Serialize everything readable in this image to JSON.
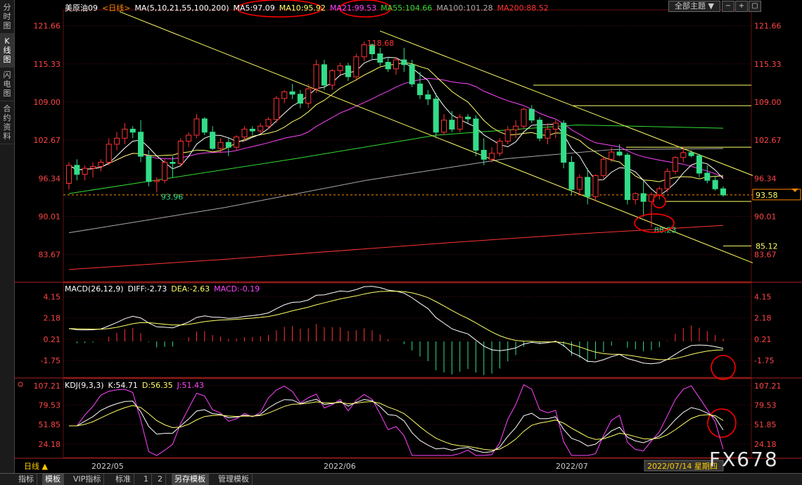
{
  "left_tabs": [
    "分时图",
    "K线图",
    "闪电图",
    "合约资料"
  ],
  "active_left_tab": 1,
  "main_header": {
    "symbol": "美原油09",
    "period": "日线",
    "ma_label": "MA(5,10,21,55,100,200)",
    "ma_items": [
      {
        "text": "MA5:97.09",
        "color": "#ffffff"
      },
      {
        "text": "MA10:95.92",
        "color": "#ffff66"
      },
      {
        "text": "MA21:99.53",
        "color": "#ff44ff"
      },
      {
        "text": "MA55:104.66",
        "color": "#33dd33"
      },
      {
        "text": "MA100:101.28",
        "color": "#aaaaaa"
      },
      {
        "text": "MA200:88.52",
        "color": "#ff3333"
      }
    ]
  },
  "theme_button": "全部主题",
  "theme_icon": "chevron-down-icon",
  "toolbar_icons": [
    "minus-icon",
    "plus-icon",
    "window-icon"
  ],
  "price_axis": {
    "ticks": [
      "121.66",
      "115.33",
      "109.00",
      "102.67",
      "96.34",
      "90.01",
      "83.67"
    ],
    "min": 79.2,
    "max": 124.3
  },
  "markers": {
    "high": "118.68",
    "low_left": "93.96",
    "low_right": "88.23",
    "current": "93.58",
    "target": "85.12"
  },
  "macd": {
    "title": "MACD(26,12,9)",
    "diff": "DIFF:-2.73",
    "dea": "DEA:-2.63",
    "macd": "MACD:-0.19",
    "ticks": [
      "4.15",
      "2.18",
      "0.21",
      "-1.75"
    ]
  },
  "kdj": {
    "title": "KDJ(9,3,3)",
    "k": "K:54.71",
    "d": "D:56.35",
    "j": "J:51.43",
    "ticks": [
      "107.21",
      "79.53",
      "51.85",
      "24.18"
    ]
  },
  "date_axis": {
    "period_label": "日线",
    "dates": [
      "2022/05",
      "2022/06",
      "2022/07"
    ],
    "cursor_date": "2022/07/14 星期四"
  },
  "bottom_tabs": [
    "指标",
    "模板",
    "VIP指标",
    "标准",
    "1",
    "2",
    "另存模板",
    "管理模板"
  ],
  "active_bottom_tabs": [
    1,
    6
  ],
  "watermark": "FX678",
  "colors": {
    "up": "#ff3333",
    "down": "#33dd88",
    "grid": "#551111",
    "axis_text": "#ff4444"
  }
}
